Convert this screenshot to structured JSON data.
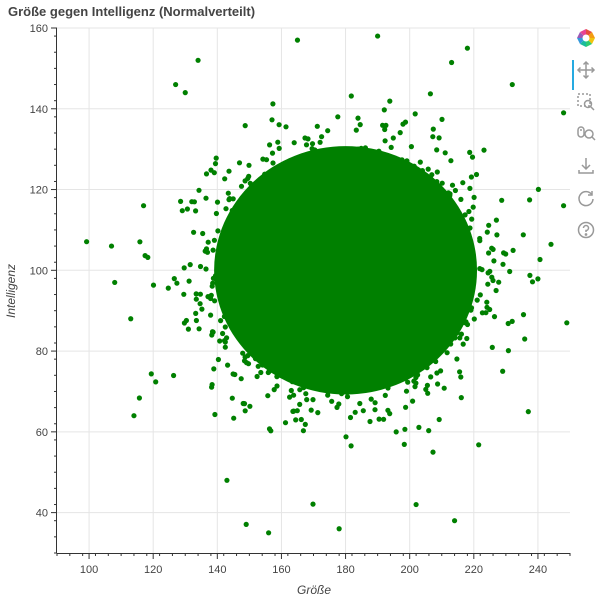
{
  "chart_data": {
    "type": "scatter",
    "title": "Größe gegen Intelligenz (Normalverteilt)",
    "xlabel": "Größe",
    "ylabel": "Intelligenz",
    "xlim": [
      90,
      250
    ],
    "ylim": [
      30,
      160
    ],
    "xticks": [
      100,
      120,
      140,
      160,
      180,
      200,
      220,
      240
    ],
    "yticks": [
      40,
      60,
      80,
      100,
      120,
      140,
      160
    ],
    "grid": true,
    "distribution": {
      "x_mean": 180,
      "x_sd": 20,
      "y_mean": 100,
      "y_sd": 15
    },
    "outliers": [
      {
        "x": 107,
        "y": 106
      },
      {
        "x": 108,
        "y": 97
      },
      {
        "x": 113,
        "y": 88
      },
      {
        "x": 114,
        "y": 64
      },
      {
        "x": 117,
        "y": 116
      },
      {
        "x": 127,
        "y": 146
      },
      {
        "x": 130,
        "y": 144
      },
      {
        "x": 134,
        "y": 152
      },
      {
        "x": 156,
        "y": 35
      },
      {
        "x": 178,
        "y": 36
      },
      {
        "x": 214,
        "y": 38
      },
      {
        "x": 237,
        "y": 65
      },
      {
        "x": 248,
        "y": 116
      },
      {
        "x": 249,
        "y": 87
      },
      {
        "x": 248,
        "y": 139
      },
      {
        "x": 232,
        "y": 146
      },
      {
        "x": 218,
        "y": 155
      },
      {
        "x": 190,
        "y": 158
      },
      {
        "x": 165,
        "y": 157
      },
      {
        "x": 143,
        "y": 48
      },
      {
        "x": 202,
        "y": 42
      },
      {
        "x": 229,
        "y": 75
      }
    ],
    "point_color": "#008000"
  },
  "toolbar": {
    "tools": [
      {
        "name": "bokeh-logo-icon"
      },
      {
        "name": "pan-icon"
      },
      {
        "name": "box-zoom-icon"
      },
      {
        "name": "wheel-zoom-icon"
      },
      {
        "name": "save-icon"
      },
      {
        "name": "reset-icon"
      },
      {
        "name": "help-icon"
      }
    ]
  }
}
